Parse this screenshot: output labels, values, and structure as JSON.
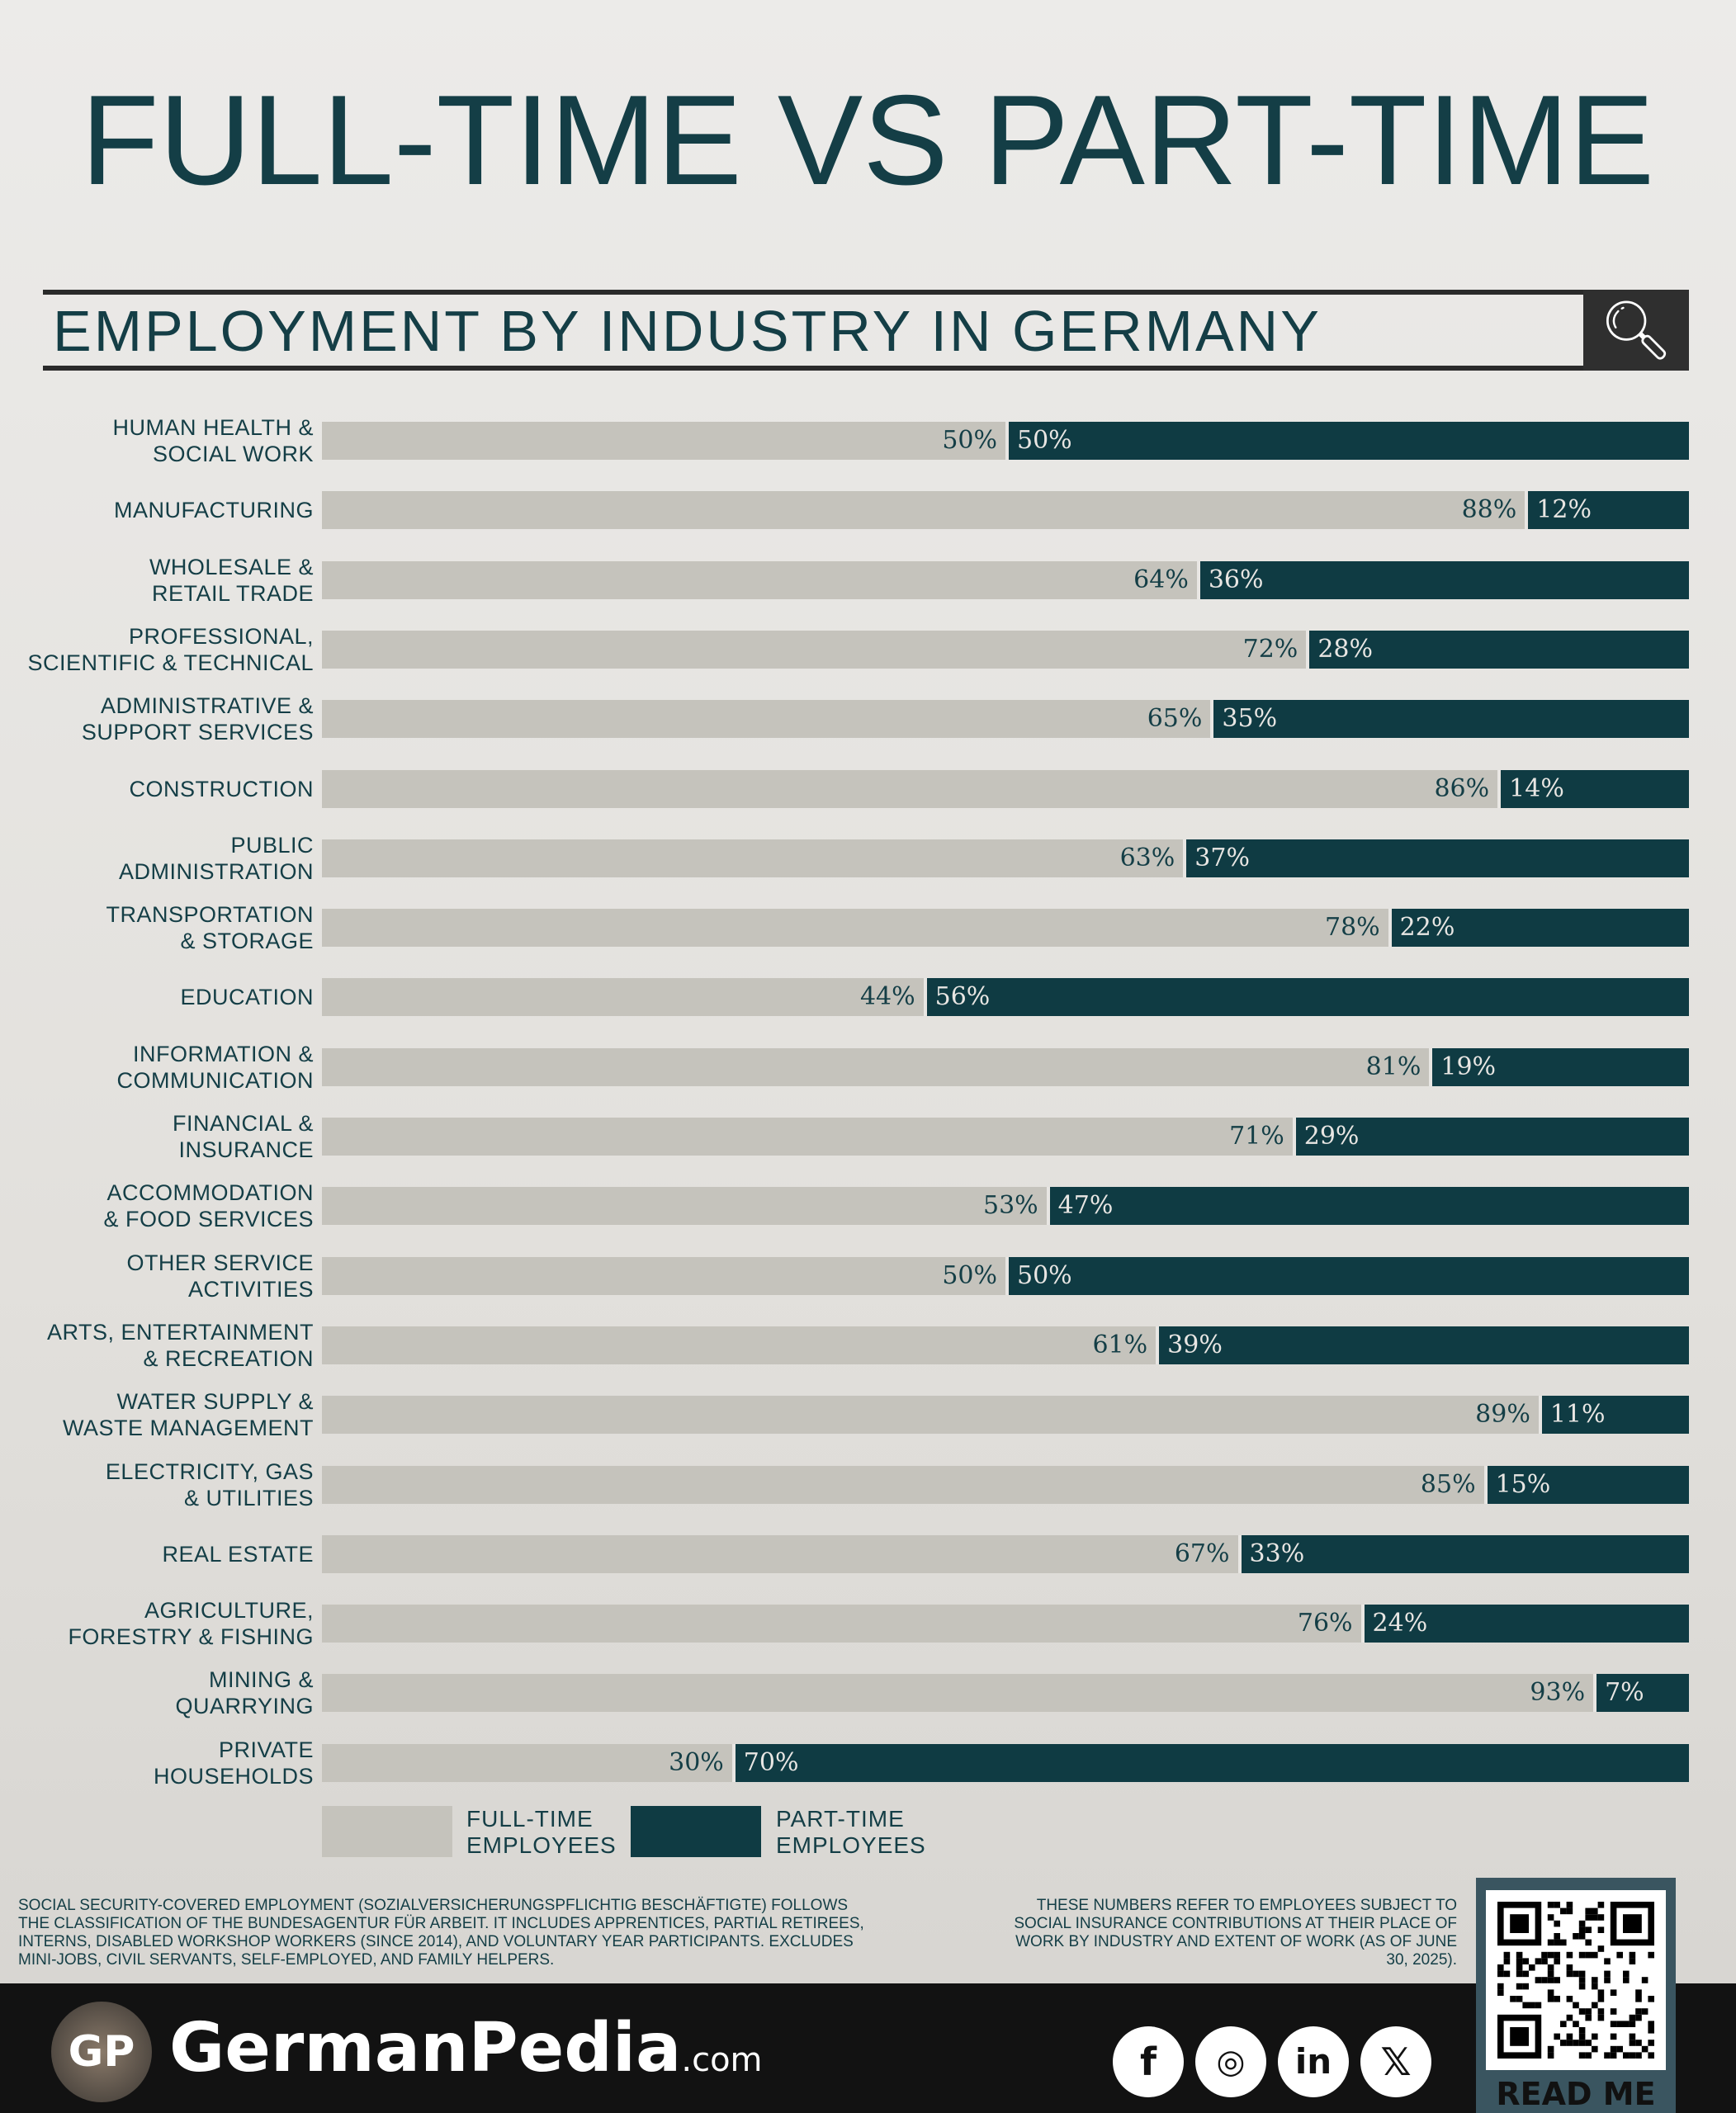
{
  "chart_data": {
    "type": "bar",
    "stacked": true,
    "orientation": "horizontal",
    "title": "FULL-TIME VS PART-TIME",
    "subtitle": "EMPLOYMENT BY INDUSTRY IN GERMANY",
    "categories": [
      "HUMAN HEALTH & SOCIAL WORK",
      "MANUFACTURING",
      "WHOLESALE & RETAIL TRADE",
      "PROFESSIONAL, SCIENTIFIC & TECHNICAL",
      "ADMINISTRATIVE & SUPPORT SERVICES",
      "CONSTRUCTION",
      "PUBLIC ADMINISTRATION",
      "TRANSPORTATION & STORAGE",
      "EDUCATION",
      "INFORMATION & COMMUNICATION",
      "FINANCIAL & INSURANCE",
      "ACCOMMODATION & FOOD SERVICES",
      "OTHER SERVICE ACTIVITIES",
      "ARTS, ENTERTAINMENT & RECREATION",
      "WATER SUPPLY & WASTE MANAGEMENT",
      "ELECTRICITY, GAS & UTILITIES",
      "REAL ESTATE",
      "AGRICULTURE, FORESTRY & FISHING",
      "MINING & QUARRYING",
      "PRIVATE HOUSEHOLDS"
    ],
    "series": [
      {
        "name": "FULL-TIME EMPLOYEES",
        "color": "#c5c3bc",
        "values": [
          50,
          88,
          64,
          72,
          65,
          86,
          63,
          78,
          44,
          81,
          71,
          53,
          50,
          61,
          89,
          85,
          67,
          76,
          93,
          30
        ]
      },
      {
        "name": "PART-TIME EMPLOYEES",
        "color": "#0f3b43",
        "values": [
          50,
          12,
          36,
          28,
          35,
          14,
          37,
          22,
          56,
          19,
          29,
          47,
          50,
          39,
          11,
          15,
          33,
          24,
          7,
          70
        ]
      }
    ],
    "unit": "%",
    "xlim": [
      0,
      100
    ],
    "legend": "bottom-left"
  },
  "notes": {
    "left": "SOCIAL SECURITY-COVERED EMPLOYMENT (SOZIALVERSICHERUNGSPFLICHTIG BESCHÄFTIGTE) FOLLOWS THE CLASSIFICATION OF THE BUNDESAGENTUR FÜR ARBEIT. IT INCLUDES APPRENTICES, PARTIAL RETIREES, INTERNS, DISABLED WORKSHOP WORKERS (SINCE 2014), AND VOLUNTARY YEAR PARTICIPANTS. EXCLUDES MINI-JOBS, CIVIL SERVANTS, SELF-EMPLOYED, AND FAMILY HELPERS.",
    "right": "THESE NUMBERS REFER TO EMPLOYEES SUBJECT TO SOCIAL INSURANCE CONTRIBUTIONS AT THEIR PLACE OF WORK BY INDUSTRY AND EXTENT OF WORK (AS OF JUNE 30, 2025)."
  },
  "footer": {
    "logo_text": "GP",
    "brand": "GermanPedia",
    "brand_suffix": ".com",
    "social": [
      "facebook-icon",
      "instagram-icon",
      "linkedin-icon",
      "x-icon"
    ],
    "qr_label": "READ ME"
  }
}
